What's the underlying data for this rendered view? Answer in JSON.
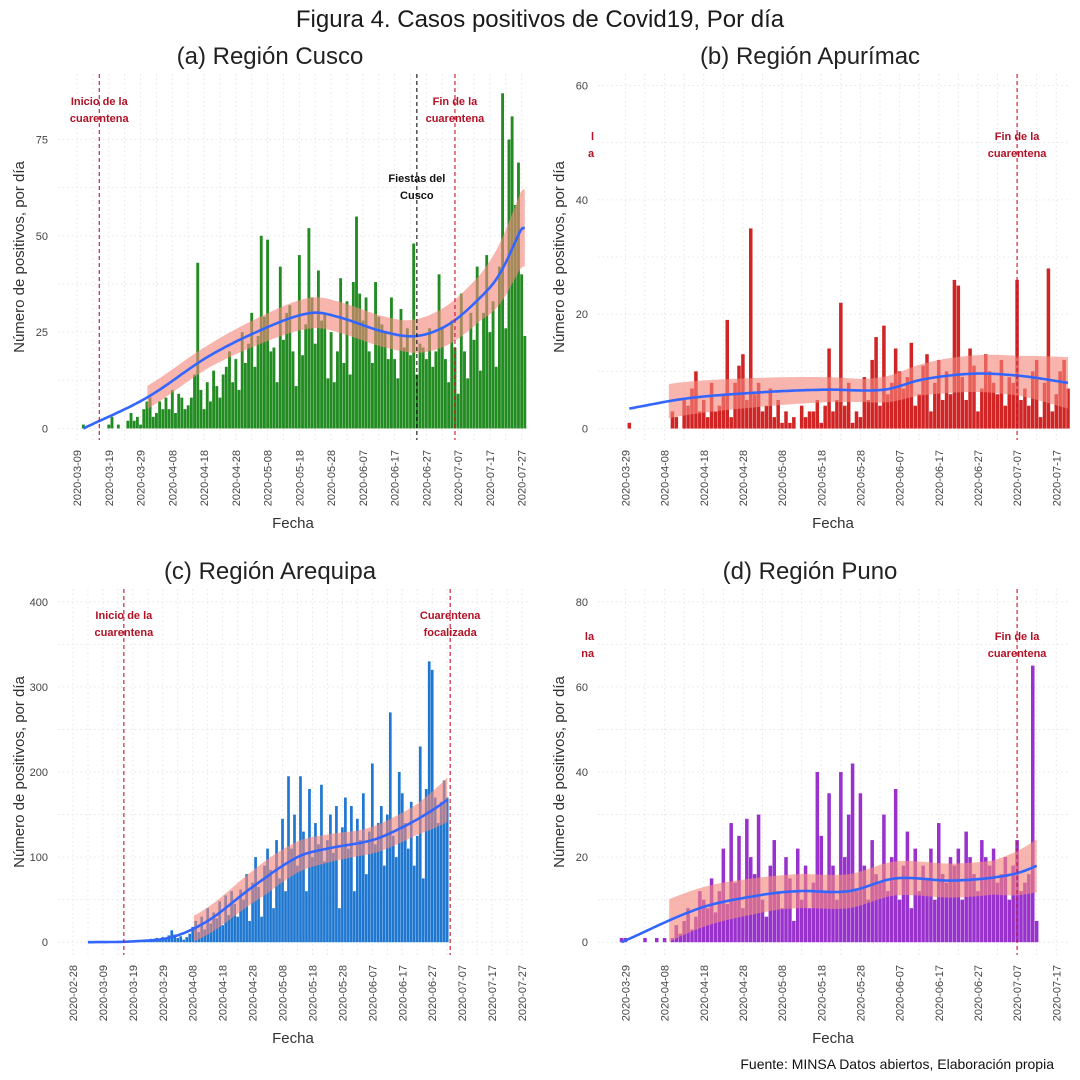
{
  "figure": {
    "title": "Figura 4. Casos positivos de Covid19, Por día",
    "source": "Fuente: MINSA Datos abiertos, Elaboración propia"
  },
  "colors": {
    "smooth_line": "#3366ff",
    "ci_band": "#f4877d",
    "vline_red": "#c8102e",
    "vline_black": "#111111",
    "annot_red": "#b11226"
  },
  "chart_data": [
    {
      "id": "cusco",
      "type": "bar",
      "title": "(a) Región Cusco",
      "xlabel": "Fecha",
      "ylabel": "Número de positivos, por día",
      "bar_color": "#228b22",
      "x_range": [
        "2020-03-03",
        "2020-07-29"
      ],
      "ylim": [
        -3,
        92
      ],
      "y_ticks": [
        0,
        25,
        50,
        75
      ],
      "x_ticks": [
        "2020-03-09",
        "2020-03-19",
        "2020-03-29",
        "2020-04-08",
        "2020-04-18",
        "2020-04-28",
        "2020-05-08",
        "2020-05-18",
        "2020-05-28",
        "2020-06-07",
        "2020-06-17",
        "2020-06-27",
        "2020-07-07",
        "2020-07-17",
        "2020-07-27"
      ],
      "start_date": "2020-03-11",
      "values": [
        1,
        0,
        0,
        0,
        0,
        0,
        0,
        0,
        1,
        3,
        0,
        1,
        0,
        0,
        2,
        4,
        2,
        3,
        1,
        5,
        7,
        8,
        3,
        4,
        7,
        5,
        8,
        5,
        10,
        4,
        9,
        8,
        5,
        6,
        8,
        14,
        43,
        10,
        5,
        12,
        7,
        15,
        11,
        8,
        14,
        16,
        20,
        12,
        18,
        10,
        25,
        17,
        22,
        30,
        16,
        24,
        50,
        29,
        49,
        20,
        21,
        12,
        42,
        23,
        30,
        32,
        20,
        11,
        45,
        19,
        27,
        52,
        34,
        22,
        41,
        28,
        30,
        13,
        25,
        12,
        20,
        39,
        17,
        33,
        14,
        38,
        55,
        35,
        28,
        34,
        20,
        17,
        38,
        29,
        27,
        25,
        18,
        34,
        18,
        13,
        31,
        21,
        26,
        19,
        48,
        14,
        22,
        21,
        18,
        26,
        16,
        20,
        40,
        26,
        18,
        12,
        28,
        21,
        9,
        35,
        20,
        13,
        30,
        23,
        42,
        15,
        30,
        45,
        25,
        33,
        16,
        42,
        87,
        26,
        75,
        81,
        58,
        69,
        40,
        24
      ],
      "smooth": [
        [
          0,
          0
        ],
        [
          20,
          8
        ],
        [
          40,
          19
        ],
        [
          60,
          27
        ],
        [
          72,
          30
        ],
        [
          80,
          29
        ],
        [
          95,
          25
        ],
        [
          105,
          24
        ],
        [
          115,
          27
        ],
        [
          125,
          34
        ],
        [
          131,
          40
        ],
        [
          138,
          52
        ]
      ],
      "ci_halfwidth": [
        [
          20,
          3
        ],
        [
          40,
          3
        ],
        [
          70,
          4
        ],
        [
          100,
          4
        ],
        [
          125,
          6
        ],
        [
          138,
          10
        ]
      ],
      "ci_start": 20,
      "vlines": [
        {
          "date": "2020-03-16",
          "color": "#c8102e"
        },
        {
          "date": "2020-06-24",
          "color": "#111111"
        },
        {
          "date": "2020-07-06",
          "color": "#c8102e"
        }
      ],
      "annotations": [
        {
          "text": [
            "Inicio de la",
            "cuarentena"
          ],
          "date": "2020-03-16",
          "y": 84,
          "color": "#b11226"
        },
        {
          "text": [
            "Fiestas del",
            "Cusco"
          ],
          "date": "2020-06-24",
          "y": 64,
          "color": "#111111"
        },
        {
          "text": [
            "Fin de la",
            "cuarentena"
          ],
          "date": "2020-07-06",
          "y": 84,
          "color": "#b11226"
        }
      ]
    },
    {
      "id": "apurimac",
      "type": "bar",
      "title": "(b) Región Apurímac",
      "xlabel": "Fecha",
      "ylabel": "Número de positivos, por día",
      "bar_color": "#d12424",
      "x_range": [
        "2020-03-22",
        "2020-07-20"
      ],
      "ylim": [
        -2,
        62
      ],
      "y_ticks": [
        0,
        20,
        40,
        60
      ],
      "x_ticks": [
        "2020-03-29",
        "2020-04-08",
        "2020-04-18",
        "2020-04-28",
        "2020-05-08",
        "2020-05-18",
        "2020-05-28",
        "2020-06-07",
        "2020-06-17",
        "2020-06-27",
        "2020-07-07",
        "2020-07-17"
      ],
      "start_date": "2020-03-30",
      "values": [
        1,
        0,
        0,
        0,
        0,
        0,
        0,
        0,
        0,
        0,
        0,
        3,
        2,
        0,
        5,
        4,
        7,
        10,
        3,
        5,
        2,
        8,
        3,
        4,
        6,
        19,
        2,
        8,
        11,
        13,
        5,
        35,
        6,
        8,
        3,
        4,
        7,
        2,
        5,
        1,
        3,
        1,
        2,
        0,
        4,
        2,
        3,
        3,
        5,
        1,
        4,
        14,
        3,
        5,
        22,
        4,
        8,
        1,
        3,
        2,
        9,
        5,
        12,
        16,
        4,
        18,
        6,
        8,
        14,
        10,
        7,
        9,
        15,
        4,
        6,
        11,
        13,
        3,
        8,
        12,
        5,
        10,
        6,
        26,
        25,
        9,
        5,
        14,
        11,
        3,
        7,
        13,
        10,
        8,
        6,
        12,
        4,
        9,
        8,
        26,
        5,
        7,
        4,
        10,
        12,
        2,
        8,
        28,
        3,
        6,
        10,
        12,
        7
      ],
      "smooth": [
        [
          0,
          3.5
        ],
        [
          15,
          5.3
        ],
        [
          35,
          6.4
        ],
        [
          50,
          6.8
        ],
        [
          65,
          6.8
        ],
        [
          75,
          8.6
        ],
        [
          88,
          9.6
        ],
        [
          100,
          9.2
        ],
        [
          112,
          8.0
        ]
      ],
      "ci_halfwidth": [
        [
          10,
          3
        ],
        [
          60,
          2
        ],
        [
          80,
          3
        ],
        [
          100,
          3.5
        ],
        [
          112,
          4.5
        ]
      ],
      "ci_start": 10,
      "vlines": [
        {
          "date": "2020-07-07",
          "color": "#c8102e"
        }
      ],
      "annotations": [
        {
          "text": [
            "Fin de la",
            "cuarentena"
          ],
          "date": "2020-07-07",
          "y": 50.5,
          "color": "#b11226"
        },
        {
          "text": [
            "l",
            "a"
          ],
          "date": "2020-03-21",
          "y": 50.5,
          "color": "#b11226",
          "anchor": "end"
        }
      ]
    },
    {
      "id": "arequipa",
      "type": "bar",
      "title": "(c) Región Arequipa",
      "xlabel": "Fecha",
      "ylabel": "Número de positivos, por día",
      "bar_color": "#1f77d0",
      "x_range": [
        "2020-02-23",
        "2020-07-29"
      ],
      "ylim": [
        -15,
        415
      ],
      "y_ticks": [
        0,
        100,
        200,
        300,
        400
      ],
      "x_ticks": [
        "2020-02-28",
        "2020-03-09",
        "2020-03-19",
        "2020-03-29",
        "2020-04-08",
        "2020-04-18",
        "2020-04-28",
        "2020-05-08",
        "2020-05-18",
        "2020-05-28",
        "2020-06-07",
        "2020-06-17",
        "2020-06-27",
        "2020-07-07",
        "2020-07-17",
        "2020-07-27"
      ],
      "start_date": "2020-03-04",
      "values": [
        0,
        0,
        0,
        0,
        0,
        0,
        0,
        0,
        0,
        0,
        0,
        0,
        0,
        1,
        0,
        0,
        1,
        2,
        0,
        3,
        1,
        4,
        2,
        5,
        3,
        6,
        4,
        8,
        14,
        9,
        5,
        7,
        3,
        6,
        10,
        18,
        25,
        12,
        30,
        15,
        40,
        22,
        35,
        28,
        48,
        20,
        55,
        32,
        60,
        45,
        30,
        62,
        50,
        80,
        25,
        70,
        100,
        65,
        30,
        90,
        110,
        85,
        40,
        120,
        75,
        145,
        60,
        195,
        110,
        150,
        90,
        195,
        130,
        60,
        180,
        100,
        140,
        115,
        185,
        95,
        120,
        150,
        105,
        160,
        40,
        135,
        170,
        110,
        160,
        60,
        145,
        120,
        175,
        80,
        130,
        210,
        115,
        140,
        160,
        90,
        150,
        270,
        125,
        100,
        200,
        175,
        140,
        110,
        165,
        90,
        125,
        230,
        75,
        180,
        330,
        320,
        170,
        140,
        165,
        190,
        170
      ],
      "smooth": [
        [
          0,
          0
        ],
        [
          15,
          1
        ],
        [
          28,
          6
        ],
        [
          40,
          25
        ],
        [
          55,
          65
        ],
        [
          70,
          100
        ],
        [
          80,
          110
        ],
        [
          95,
          120
        ],
        [
          105,
          135
        ],
        [
          115,
          155
        ],
        [
          125,
          180
        ]
      ],
      "ci_halfwidth": [
        [
          35,
          15
        ],
        [
          60,
          20
        ],
        [
          90,
          15
        ],
        [
          110,
          18
        ],
        [
          125,
          30
        ]
      ],
      "ci_start": 35,
      "vlines": [
        {
          "date": "2020-03-16",
          "color": "#c8102e"
        },
        {
          "date": "2020-07-03",
          "color": "#c8102e"
        }
      ],
      "annotations": [
        {
          "text": [
            "Inicio de la",
            "cuarentena"
          ],
          "date": "2020-03-16",
          "y": 380,
          "color": "#b11226"
        },
        {
          "text": [
            "Cuarentena",
            "focalizada"
          ],
          "date": "2020-07-03",
          "y": 380,
          "color": "#b11226"
        }
      ]
    },
    {
      "id": "puno",
      "type": "bar",
      "title": "(d) Región Puno",
      "xlabel": "Fecha",
      "ylabel": "Número de positivos, por día",
      "bar_color": "#9932cc",
      "x_range": [
        "2020-03-22",
        "2020-07-20"
      ],
      "ylim": [
        -3,
        83
      ],
      "y_ticks": [
        0,
        20,
        40,
        60,
        80
      ],
      "x_ticks": [
        "2020-03-29",
        "2020-04-08",
        "2020-04-18",
        "2020-04-28",
        "2020-05-08",
        "2020-05-18",
        "2020-05-28",
        "2020-06-07",
        "2020-06-17",
        "2020-06-27",
        "2020-07-07",
        "2020-07-17"
      ],
      "start_date": "2020-03-28",
      "values": [
        1,
        1,
        0,
        0,
        0,
        0,
        1,
        0,
        0,
        1,
        0,
        1,
        0,
        1,
        4,
        2,
        5,
        8,
        3,
        6,
        12,
        10,
        8,
        15,
        7,
        12,
        22,
        9,
        28,
        14,
        25,
        8,
        29,
        20,
        16,
        30,
        10,
        6,
        18,
        24,
        12,
        8,
        20,
        15,
        5,
        22,
        10,
        18,
        8,
        14,
        40,
        25,
        12,
        35,
        18,
        10,
        40,
        20,
        30,
        42,
        12,
        35,
        18,
        10,
        24,
        16,
        14,
        30,
        12,
        20,
        36,
        10,
        18,
        26,
        8,
        22,
        12,
        18,
        15,
        22,
        10,
        28,
        16,
        14,
        20,
        18,
        22,
        10,
        26,
        20,
        16,
        12,
        24,
        20,
        18,
        22,
        14,
        16,
        20,
        10,
        18,
        24,
        12,
        14,
        16,
        65,
        5
      ],
      "smooth": [
        [
          0,
          0
        ],
        [
          20,
          8
        ],
        [
          35,
          11
        ],
        [
          45,
          12
        ],
        [
          58,
          12
        ],
        [
          70,
          15
        ],
        [
          85,
          14.5
        ],
        [
          100,
          16
        ],
        [
          110,
          19.5
        ]
      ],
      "ci_halfwidth": [
        [
          12,
          5
        ],
        [
          40,
          4
        ],
        [
          70,
          4
        ],
        [
          95,
          4
        ],
        [
          110,
          7
        ]
      ],
      "ci_start": 12,
      "vlines": [
        {
          "date": "2020-07-07",
          "color": "#c8102e"
        }
      ],
      "annotations": [
        {
          "text": [
            "Fin de la",
            "cuarentena"
          ],
          "date": "2020-07-07",
          "y": 71,
          "color": "#b11226"
        },
        {
          "text": [
            "la",
            "na"
          ],
          "date": "2020-03-21",
          "y": 71,
          "color": "#b11226",
          "anchor": "end"
        }
      ]
    }
  ]
}
